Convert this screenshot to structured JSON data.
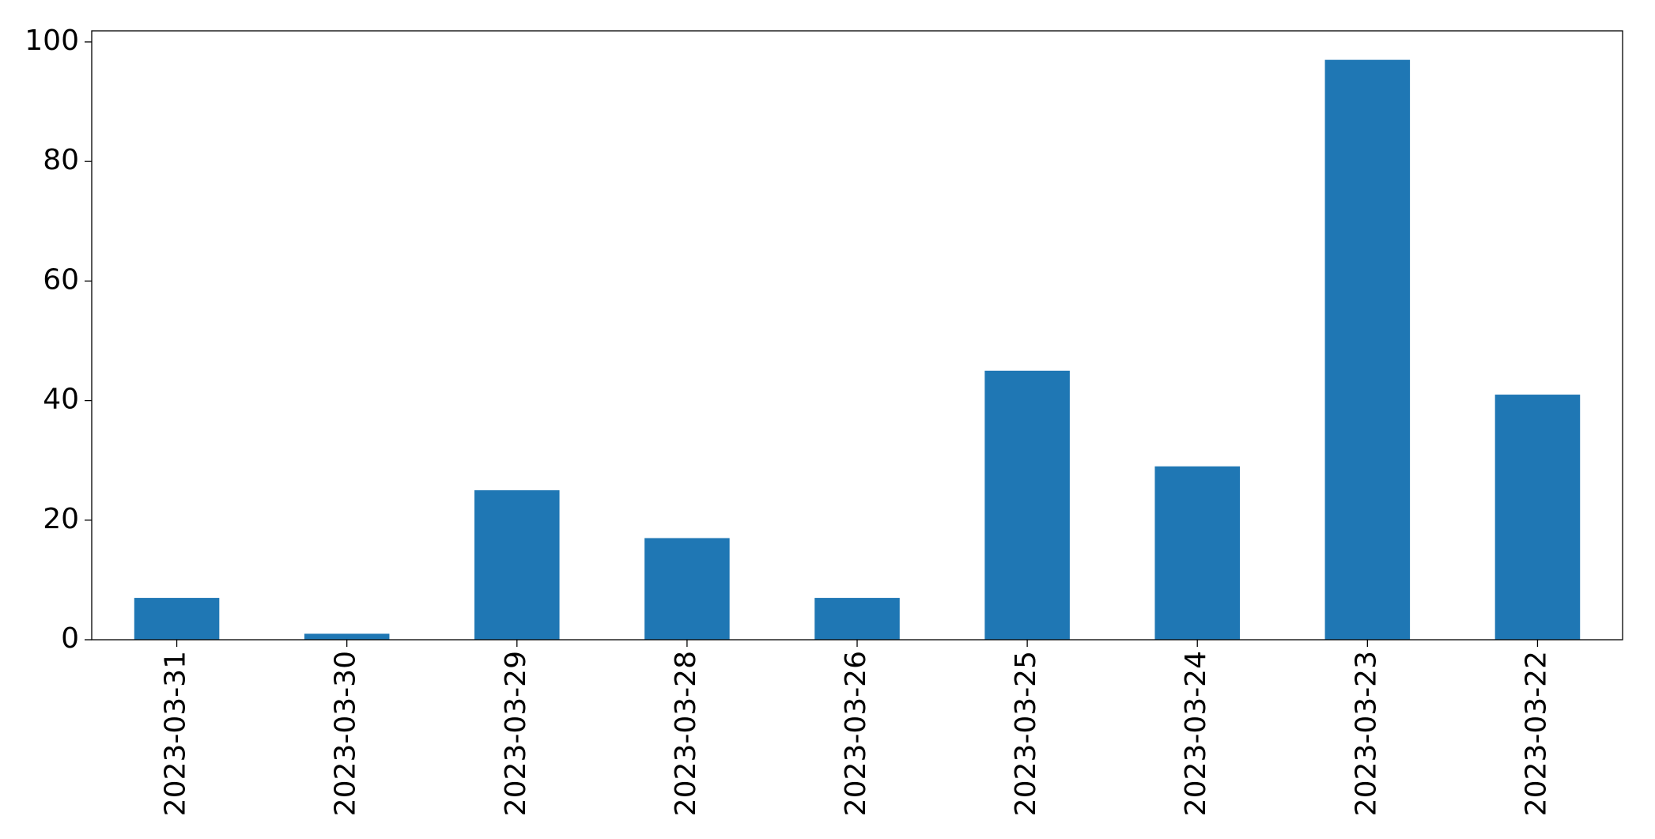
{
  "chart_data": {
    "type": "bar",
    "categories": [
      "2023-03-31",
      "2023-03-30",
      "2023-03-29",
      "2023-03-28",
      "2023-03-26",
      "2023-03-25",
      "2023-03-24",
      "2023-03-23",
      "2023-03-22"
    ],
    "values": [
      7,
      1,
      25,
      17,
      7,
      45,
      29,
      97,
      41
    ],
    "color": "#1f77b4",
    "ylim": [
      0,
      101.85
    ],
    "yticks": [
      0,
      20,
      40,
      60,
      80,
      100
    ],
    "grid": false
  }
}
